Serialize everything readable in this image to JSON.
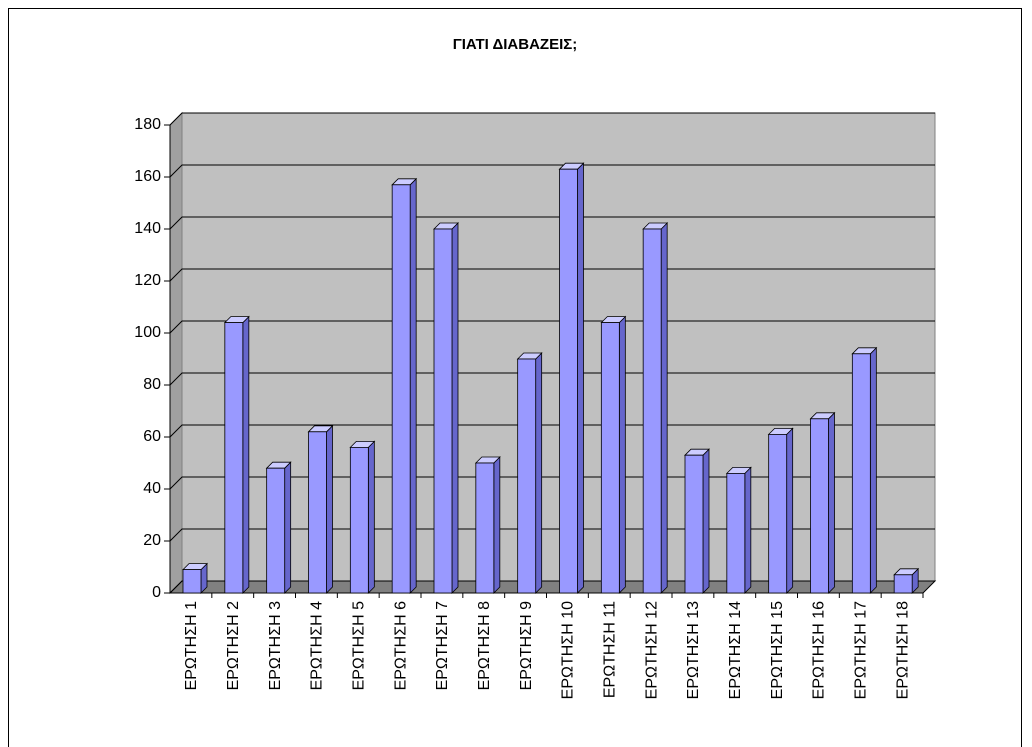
{
  "chart_data": {
    "type": "bar3d",
    "title": "ΓΙΑΤΙ ΔΙΑΒΑΖΕΙΣ;",
    "categories": [
      "ΕΡΩΤΗΣΗ 1",
      "ΕΡΩΤΗΣΗ 2",
      "ΕΡΩΤΗΣΗ 3",
      "ΕΡΩΤΗΣΗ 4",
      "ΕΡΩΤΗΣΗ 5",
      "ΕΡΩΤΗΣΗ 6",
      "ΕΡΩΤΗΣΗ 7",
      "ΕΡΩΤΗΣΗ 8",
      "ΕΡΩΤΗΣΗ 9",
      "ΕΡΩΤΗΣΗ 10",
      "ΕΡΩΤΗΣΗ 11",
      "ΕΡΩΤΗΣΗ 12",
      "ΕΡΩΤΗΣΗ 13",
      "ΕΡΩΤΗΣΗ 14",
      "ΕΡΩΤΗΣΗ 15",
      "ΕΡΩΤΗΣΗ 16",
      "ΕΡΩΤΗΣΗ 17",
      "ΕΡΩΤΗΣΗ 18"
    ],
    "values": [
      9,
      104,
      48,
      62,
      56,
      157,
      140,
      50,
      90,
      163,
      104,
      140,
      53,
      46,
      61,
      67,
      92,
      7
    ],
    "color": "#9999ff",
    "ylim": [
      0,
      180
    ],
    "yticks": [
      0,
      20,
      40,
      60,
      80,
      100,
      120,
      140,
      160,
      180
    ],
    "grid": true
  }
}
